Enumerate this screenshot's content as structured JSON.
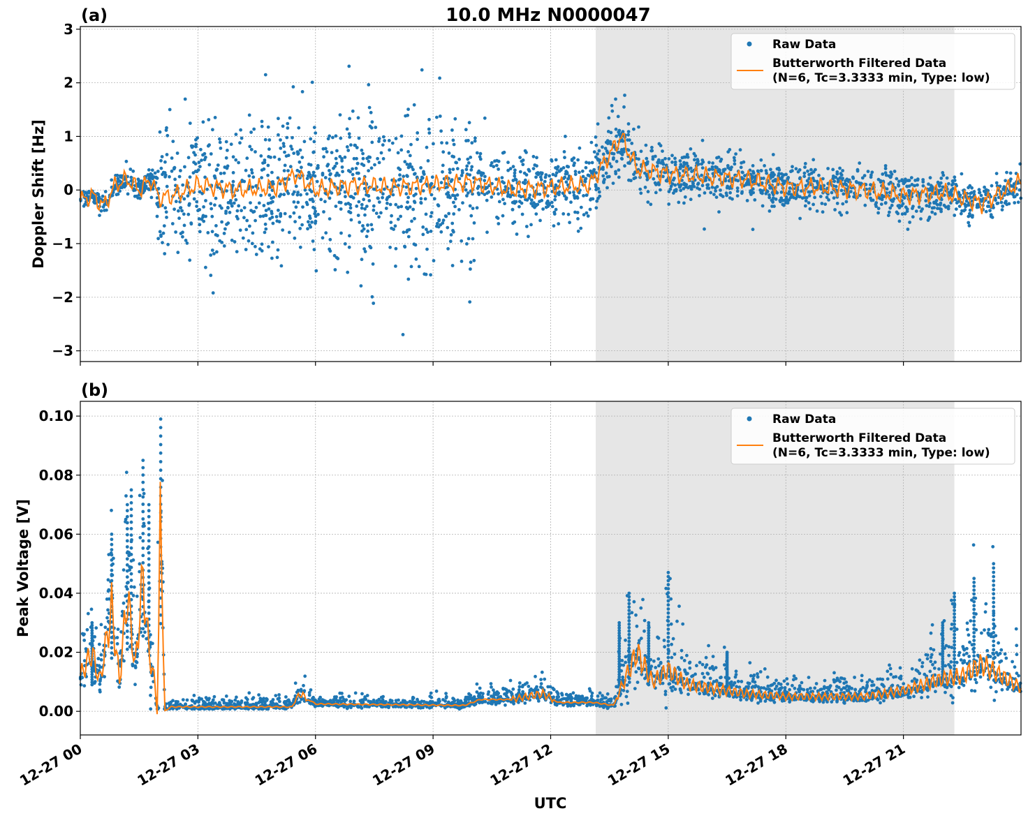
{
  "figure": {
    "title": "10.0 MHz N0000047",
    "xlabel": "UTC"
  },
  "colors": {
    "raw": "#1f77b4",
    "filtered": "#ff7f0e",
    "shade": "#e6e6e6",
    "grid": "#b0b0b0"
  },
  "legend": {
    "raw": "Raw Data",
    "filtered_line1": "Butterworth Filtered Data",
    "filtered_line2": "(N=6, Tc=3.3333 min, Type: low)"
  },
  "chart_data": [
    {
      "panel": "(a)",
      "type": "scatter",
      "title": "10.0 MHz N0000047",
      "xlabel": "UTC",
      "ylabel": "Doppler Shift [Hz]",
      "xlim_hours": [
        0,
        24
      ],
      "ylim": [
        -3.2,
        3.05
      ],
      "yticks": [
        -3,
        -2,
        -1,
        0,
        1,
        2,
        3
      ],
      "ytick_labels": [
        "−3",
        "−2",
        "−1",
        "0",
        "1",
        "2",
        "3"
      ],
      "grid": true,
      "legend_position": "upper right",
      "shaded_span_hours": [
        13.15,
        22.3
      ],
      "series": [
        {
          "name": "Raw Data",
          "kind": "points",
          "envelope": {
            "hours": [
              0,
              1.9,
              2.0,
              5.5,
              5.7,
              10.0,
              10.2,
              12.0,
              13.9,
              14.0,
              18.0,
              22.0,
              24.0
            ],
            "spread": [
              0.15,
              0.2,
              1.2,
              1.2,
              1.3,
              1.3,
              0.6,
              0.6,
              0.55,
              0.45,
              0.4,
              0.35,
              0.3
            ]
          }
        },
        {
          "name": "Butterworth Filtered Data (N=6, Tc=3.3333 min, Type: low)",
          "kind": "line",
          "key_points": {
            "hours": [
              0,
              0.3,
              0.6,
              0.9,
              1.2,
              1.5,
              1.8,
              2.0,
              2.4,
              3.0,
              4.0,
              5.0,
              5.5,
              6.0,
              7.0,
              8.0,
              9.0,
              10.0,
              11.0,
              12.0,
              13.0,
              13.8,
              14.2,
              15.0,
              16.0,
              17.0,
              18.0,
              19.0,
              20.0,
              21.0,
              22.0,
              23.0,
              24.0
            ],
            "values": [
              -0.2,
              -0.1,
              -0.3,
              0.1,
              0.2,
              0.0,
              0.2,
              -0.15,
              -0.1,
              0.1,
              0.0,
              0.05,
              0.3,
              0.0,
              0.1,
              0.05,
              0.1,
              0.15,
              0.0,
              0.05,
              0.1,
              1.0,
              0.4,
              0.3,
              0.25,
              0.2,
              0.05,
              0.05,
              0.0,
              -0.1,
              -0.05,
              -0.25,
              0.15
            ]
          }
        }
      ]
    },
    {
      "panel": "(b)",
      "type": "scatter",
      "xlabel": "UTC",
      "ylabel": "Peak Voltage [V]",
      "xlim_hours": [
        0,
        24
      ],
      "ylim": [
        -0.008,
        0.105
      ],
      "yticks": [
        0.0,
        0.02,
        0.04,
        0.06,
        0.08,
        0.1
      ],
      "ytick_labels": [
        "0.00",
        "0.02",
        "0.04",
        "0.06",
        "0.08",
        "0.10"
      ],
      "grid": true,
      "legend_position": "upper right",
      "shaded_span_hours": [
        13.15,
        22.3
      ],
      "series": [
        {
          "name": "Raw Data",
          "kind": "points",
          "peaks": {
            "hours": [
              0.3,
              0.8,
              1.2,
              1.3,
              1.6,
              1.75,
              2.05,
              13.75,
              14.0,
              14.5,
              15.0,
              16.5,
              22.0,
              22.3,
              22.8,
              23.3
            ],
            "values": [
              0.03,
              0.06,
              0.07,
              0.075,
              0.085,
              0.07,
              0.099,
              0.03,
              0.04,
              0.03,
              0.047,
              0.02,
              0.03,
              0.04,
              0.045,
              0.05
            ]
          }
        },
        {
          "name": "Butterworth Filtered Data (N=6, Tc=3.3333 min, Type: low)",
          "kind": "line",
          "key_points": {
            "hours": [
              0,
              0.3,
              0.5,
              0.8,
              1.0,
              1.2,
              1.4,
              1.6,
              1.75,
              1.9,
              1.97,
              2.05,
              2.15,
              2.3,
              5.4,
              5.6,
              6.0,
              9.8,
              10.2,
              11.0,
              11.8,
              12.2,
              13.1,
              13.6,
              13.9,
              14.2,
              14.6,
              15.0,
              15.5,
              16.0,
              17.0,
              18.0,
              20.0,
              21.0,
              22.0,
              22.5,
              23.0,
              23.5,
              24.0
            ],
            "values": [
              0.012,
              0.02,
              0.01,
              0.035,
              0.01,
              0.04,
              0.015,
              0.046,
              0.02,
              0.01,
              -0.003,
              0.074,
              0.0,
              0.0015,
              0.0015,
              0.006,
              0.0025,
              0.002,
              0.004,
              0.004,
              0.006,
              0.003,
              0.003,
              0.002,
              0.011,
              0.02,
              0.01,
              0.014,
              0.009,
              0.008,
              0.006,
              0.005,
              0.005,
              0.007,
              0.011,
              0.012,
              0.016,
              0.012,
              0.008
            ]
          }
        }
      ]
    }
  ],
  "x_axis": {
    "ticks_hours": [
      0,
      3,
      6,
      9,
      12,
      15,
      18,
      21
    ],
    "tick_labels": [
      "12-27 00",
      "12-27 03",
      "12-27 06",
      "12-27 09",
      "12-27 12",
      "12-27 15",
      "12-27 18",
      "12-27 21"
    ]
  }
}
